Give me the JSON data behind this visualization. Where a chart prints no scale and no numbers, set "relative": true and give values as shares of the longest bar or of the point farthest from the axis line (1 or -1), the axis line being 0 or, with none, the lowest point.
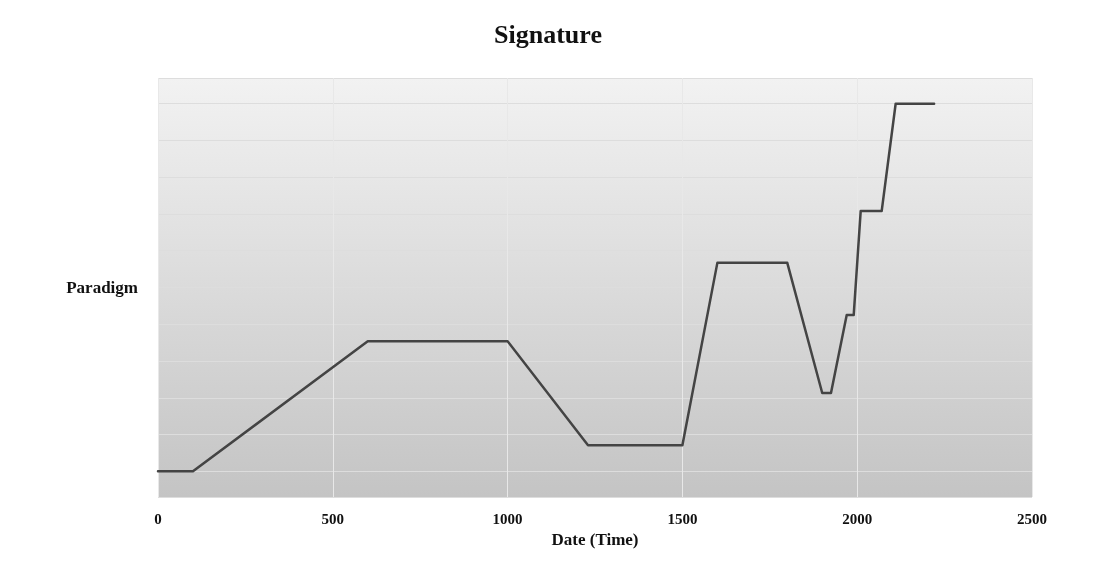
{
  "chart_data": {
    "type": "line",
    "title": "Signature",
    "xlabel": "Date (Time)",
    "ylabel": "Paradigm",
    "relative": true,
    "x": [
      0,
      100,
      600,
      1000,
      1230,
      1500,
      1600,
      1800,
      1900,
      1925,
      1970,
      1990,
      2010,
      2070,
      2110,
      2220
    ],
    "values": [
      0,
      0,
      0.354,
      0.354,
      0.071,
      0.071,
      0.567,
      0.567,
      0.213,
      0.213,
      0.425,
      0.425,
      0.708,
      0.708,
      1,
      1
    ],
    "color": "#444444",
    "xlim": [
      0,
      2500
    ],
    "xticks": [
      0,
      500,
      1000,
      1500,
      2000,
      2500
    ],
    "grid": true,
    "marker": "none",
    "line_style": "solid"
  }
}
